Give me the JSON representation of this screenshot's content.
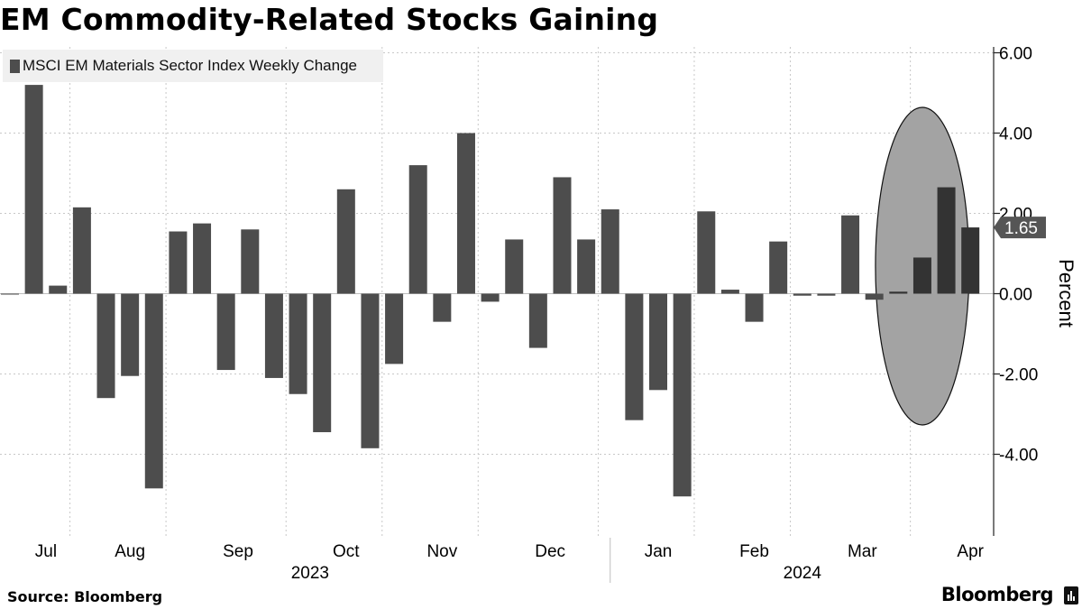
{
  "title": "EM Commodity-Related Stocks Gaining",
  "source": "Source: Bloomberg",
  "brand": "Bloomberg",
  "colors": {
    "bar": "#4d4d4d",
    "bar_highlight": "#333333",
    "ellipse_fill": "#a3a3a3",
    "grid": "#c8c8c8",
    "legend_bg": "#f0f0f0",
    "value_tag": "#555555"
  },
  "chart_data": {
    "type": "bar",
    "title": "EM Commodity-Related Stocks Gaining",
    "ylabel": "Percent",
    "ylim": [
      -6.2,
      6.2
    ],
    "yticks": [
      -4,
      -2,
      0,
      2,
      4,
      6
    ],
    "ytick_labels": [
      "-4.00",
      "-2.00",
      "0.00",
      "2.00",
      "4.00",
      "6.00"
    ],
    "legend": "MSCI EM Materials Sector Index Weekly Change",
    "last_value_label": "1.65",
    "last_value": 1.65,
    "month_labels": [
      "Jul",
      "Aug",
      "Sep",
      "Oct",
      "Nov",
      "Dec",
      "Jan",
      "Feb",
      "Mar",
      "Apr"
    ],
    "month_label_week": [
      1.5,
      5,
      9.5,
      14,
      18,
      22.5,
      27,
      31,
      35.5,
      40
    ],
    "month_boundaries_week": [
      3,
      7,
      12,
      16,
      20,
      25,
      29,
      33,
      38
    ],
    "year_labels": [
      "2023",
      "2024"
    ],
    "year_label_week": [
      12.5,
      33
    ],
    "year_boundary_week": 25.5,
    "highlight_from_index": 37,
    "values": [
      0,
      5.2,
      0.2,
      2.15,
      -2.6,
      -2.05,
      -4.85,
      1.55,
      1.75,
      -1.9,
      1.6,
      -2.1,
      -2.5,
      -3.45,
      2.6,
      -3.85,
      -1.75,
      3.2,
      -0.7,
      4.0,
      -0.2,
      1.35,
      -1.35,
      2.9,
      1.35,
      2.1,
      -3.15,
      -2.4,
      -5.05,
      2.05,
      0.1,
      -0.7,
      1.3,
      -0.05,
      -0.05,
      1.95,
      -0.15,
      0.05,
      0.9,
      2.65,
      1.65
    ],
    "annotation": "ellipse highlighting the latest three weekly gains"
  }
}
